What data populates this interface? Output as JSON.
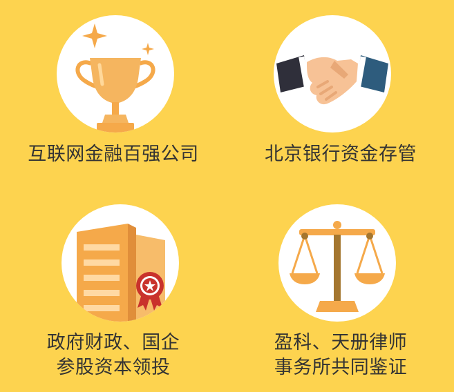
{
  "features": [
    {
      "icon": "trophy-icon",
      "lines": [
        "互联网金融百强公司"
      ]
    },
    {
      "icon": "handshake-icon",
      "lines": [
        "北京银行资金存管"
      ]
    },
    {
      "icon": "certified-building-icon",
      "lines": [
        "政府财政、国企",
        "参股资本领投"
      ]
    },
    {
      "icon": "scales-of-justice-icon",
      "lines": [
        "盈科、天册律师",
        "事务所共同鉴证"
      ]
    }
  ],
  "colors": {
    "background": "#fdd34f",
    "circle": "#ffffff",
    "accent": "#f5a94a",
    "text": "#333333"
  }
}
